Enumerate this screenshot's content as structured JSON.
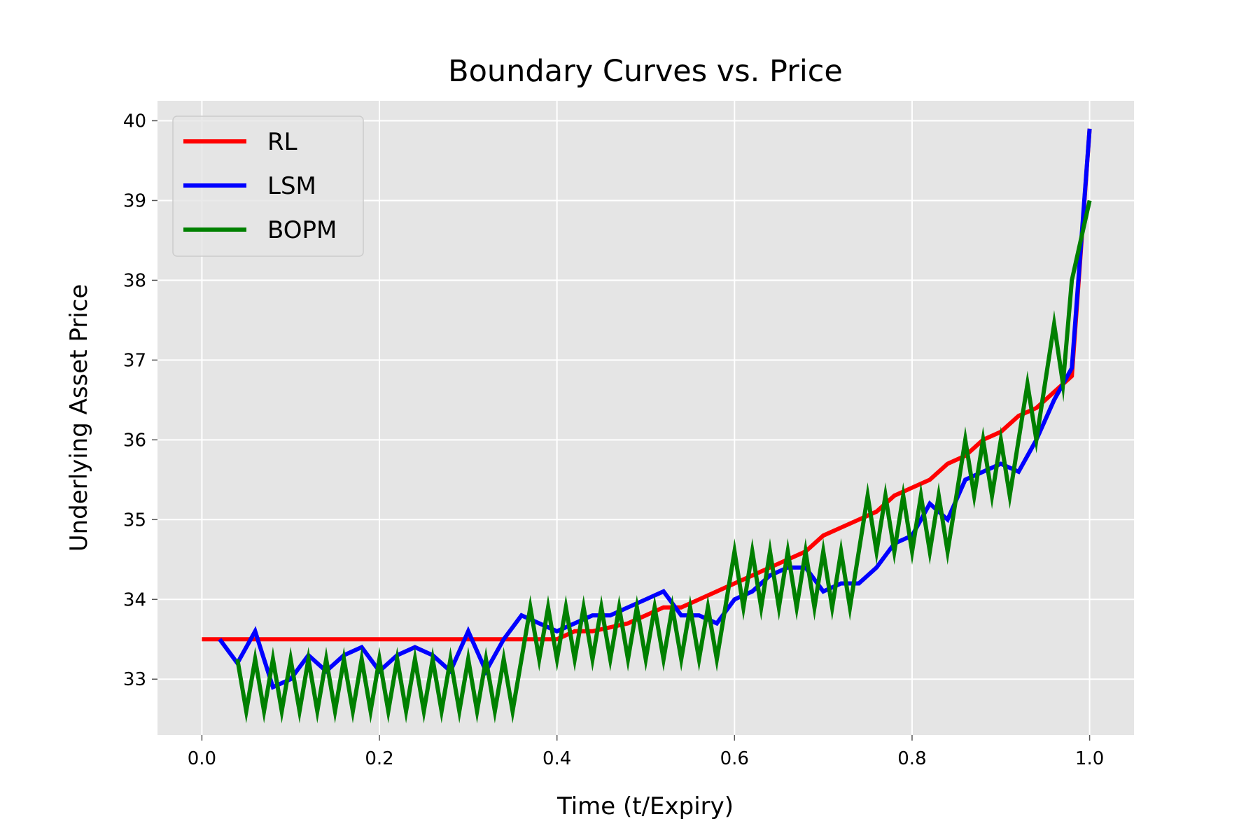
{
  "chart_data": {
    "type": "line",
    "title": "Boundary Curves vs. Price",
    "xlabel": "Time (t/Expiry)",
    "ylabel": "Underlying Asset Price",
    "xlim": [
      -0.05,
      1.05
    ],
    "ylim": [
      32.3,
      40.25
    ],
    "xticks": [
      "0.0",
      "0.2",
      "0.4",
      "0.6",
      "0.8",
      "1.0"
    ],
    "yticks": [
      "33",
      "34",
      "35",
      "36",
      "37",
      "38",
      "39",
      "40"
    ],
    "grid": true,
    "legend_position": "upper-left",
    "series": [
      {
        "name": "RL",
        "color": "#ff0000",
        "x": [
          0.0,
          0.02,
          0.04,
          0.06,
          0.08,
          0.1,
          0.12,
          0.14,
          0.16,
          0.18,
          0.2,
          0.22,
          0.24,
          0.26,
          0.28,
          0.3,
          0.32,
          0.34,
          0.36,
          0.38,
          0.4,
          0.42,
          0.44,
          0.46,
          0.48,
          0.5,
          0.52,
          0.54,
          0.56,
          0.58,
          0.6,
          0.62,
          0.64,
          0.66,
          0.68,
          0.7,
          0.72,
          0.74,
          0.76,
          0.78,
          0.8,
          0.82,
          0.84,
          0.86,
          0.88,
          0.9,
          0.92,
          0.94,
          0.96,
          0.98,
          1.0
        ],
        "y": [
          33.5,
          33.5,
          33.5,
          33.5,
          33.5,
          33.5,
          33.5,
          33.5,
          33.5,
          33.5,
          33.5,
          33.5,
          33.5,
          33.5,
          33.5,
          33.5,
          33.5,
          33.5,
          33.5,
          33.5,
          33.5,
          33.6,
          33.6,
          33.65,
          33.7,
          33.8,
          33.9,
          33.9,
          34.0,
          34.1,
          34.2,
          34.3,
          34.4,
          34.5,
          34.6,
          34.8,
          34.9,
          35.0,
          35.1,
          35.3,
          35.4,
          35.5,
          35.7,
          35.8,
          36.0,
          36.1,
          36.3,
          36.4,
          36.6,
          36.8,
          39.9
        ]
      },
      {
        "name": "LSM",
        "color": "#0000ff",
        "x": [
          0.02,
          0.04,
          0.06,
          0.08,
          0.1,
          0.12,
          0.14,
          0.16,
          0.18,
          0.2,
          0.22,
          0.24,
          0.26,
          0.28,
          0.3,
          0.32,
          0.34,
          0.36,
          0.38,
          0.4,
          0.42,
          0.44,
          0.46,
          0.48,
          0.5,
          0.52,
          0.54,
          0.56,
          0.58,
          0.6,
          0.62,
          0.64,
          0.66,
          0.68,
          0.7,
          0.72,
          0.74,
          0.76,
          0.78,
          0.8,
          0.82,
          0.84,
          0.86,
          0.88,
          0.9,
          0.92,
          0.94,
          0.96,
          0.98,
          1.0
        ],
        "y": [
          33.5,
          33.2,
          33.6,
          32.9,
          33.0,
          33.3,
          33.1,
          33.3,
          33.4,
          33.1,
          33.3,
          33.4,
          33.3,
          33.1,
          33.6,
          33.1,
          33.5,
          33.8,
          33.7,
          33.6,
          33.7,
          33.8,
          33.8,
          33.9,
          34.0,
          34.1,
          33.8,
          33.8,
          33.7,
          34.0,
          34.1,
          34.3,
          34.4,
          34.4,
          34.1,
          34.2,
          34.2,
          34.4,
          34.7,
          34.8,
          35.2,
          35.0,
          35.5,
          35.6,
          35.7,
          35.6,
          36.0,
          36.5,
          36.9,
          39.9
        ]
      },
      {
        "name": "BOPM",
        "color": "#008000",
        "x": [
          0.04,
          0.05,
          0.06,
          0.07,
          0.08,
          0.09,
          0.1,
          0.11,
          0.12,
          0.13,
          0.14,
          0.15,
          0.16,
          0.17,
          0.18,
          0.19,
          0.2,
          0.21,
          0.22,
          0.23,
          0.24,
          0.25,
          0.26,
          0.27,
          0.28,
          0.29,
          0.3,
          0.31,
          0.32,
          0.33,
          0.34,
          0.35,
          0.37,
          0.38,
          0.39,
          0.4,
          0.41,
          0.42,
          0.43,
          0.44,
          0.45,
          0.46,
          0.47,
          0.48,
          0.49,
          0.5,
          0.51,
          0.52,
          0.53,
          0.54,
          0.55,
          0.56,
          0.57,
          0.58,
          0.6,
          0.61,
          0.62,
          0.63,
          0.64,
          0.65,
          0.66,
          0.67,
          0.68,
          0.69,
          0.7,
          0.71,
          0.72,
          0.73,
          0.75,
          0.76,
          0.77,
          0.78,
          0.79,
          0.8,
          0.81,
          0.82,
          0.83,
          0.84,
          0.86,
          0.87,
          0.88,
          0.89,
          0.9,
          0.91,
          0.93,
          0.94,
          0.96,
          0.97,
          0.98,
          1.0
        ],
        "y": [
          33.25,
          32.6,
          33.25,
          32.6,
          33.25,
          32.6,
          33.25,
          32.6,
          33.25,
          32.6,
          33.25,
          32.6,
          33.25,
          32.6,
          33.25,
          32.6,
          33.25,
          32.6,
          33.25,
          32.6,
          33.25,
          32.6,
          33.25,
          32.6,
          33.25,
          32.6,
          33.25,
          32.6,
          33.25,
          32.6,
          33.25,
          32.6,
          33.9,
          33.25,
          33.9,
          33.25,
          33.9,
          33.25,
          33.9,
          33.25,
          33.9,
          33.25,
          33.9,
          33.25,
          33.9,
          33.25,
          33.9,
          33.25,
          33.9,
          33.25,
          33.9,
          33.25,
          33.9,
          33.25,
          34.6,
          33.9,
          34.6,
          33.9,
          34.6,
          33.9,
          34.6,
          33.9,
          34.6,
          33.9,
          34.6,
          33.9,
          34.6,
          33.9,
          35.3,
          34.6,
          35.3,
          34.6,
          35.3,
          34.6,
          35.3,
          34.6,
          35.3,
          34.6,
          36.0,
          35.3,
          36.0,
          35.3,
          36.0,
          35.3,
          36.7,
          36.0,
          37.45,
          36.7,
          38.0,
          39.0
        ]
      }
    ]
  }
}
